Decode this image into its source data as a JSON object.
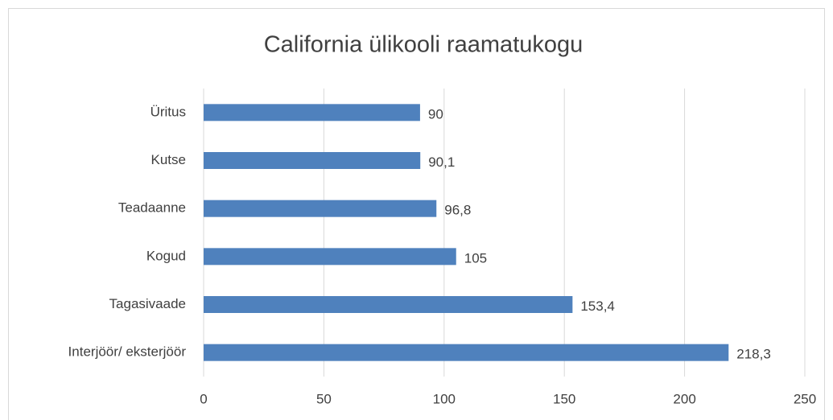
{
  "chart_data": {
    "type": "hbar",
    "title": "California ülikooli raamatukogu",
    "categories": [
      "Üritus",
      "Kutse",
      "Teadaanne",
      "Kogud",
      "Tagasivaade",
      "Interjöör/ eksterjöör"
    ],
    "values": [
      90,
      90.1,
      96.8,
      105,
      153.4,
      218.3
    ],
    "value_labels": [
      "90",
      "90,1",
      "96,8",
      "105",
      "153,4",
      "218,3"
    ],
    "color": "#4f81bd",
    "xlim": [
      0,
      250
    ],
    "xticks": [
      0,
      50,
      100,
      150,
      200,
      250
    ],
    "grid": true
  }
}
